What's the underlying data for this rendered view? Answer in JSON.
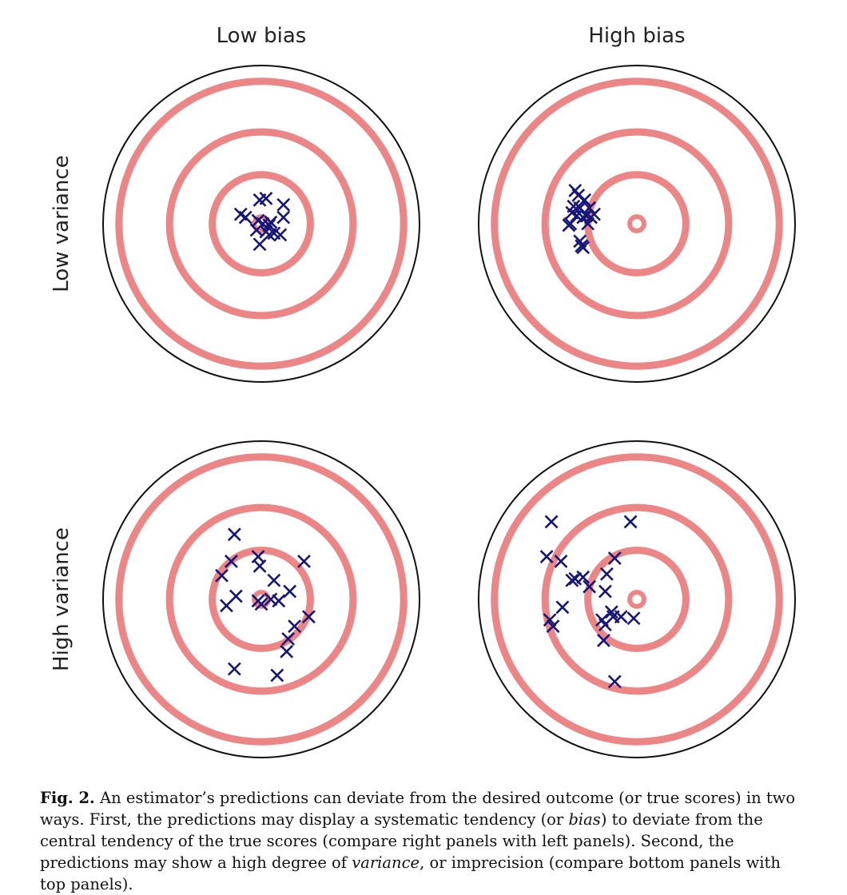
{
  "column_labels": [
    "Low bias",
    "High bias"
  ],
  "row_labels": [
    "Low variance",
    "High variance"
  ],
  "colors": {
    "ring": "#ec8585",
    "outline": "#111111",
    "marker": "#15157a"
  },
  "panels": [
    {
      "name": "low-bias-low-variance",
      "marks": [
        [
          -0.01,
          0.15
        ],
        [
          0.03,
          0.16
        ],
        [
          -0.13,
          0.06
        ],
        [
          -0.1,
          0.04
        ],
        [
          0.14,
          0.12
        ],
        [
          0.14,
          0.04
        ],
        [
          -0.02,
          0.02
        ],
        [
          0.01,
          0.0
        ],
        [
          0.05,
          -0.01
        ],
        [
          -0.03,
          -0.04
        ],
        [
          0.03,
          -0.05
        ],
        [
          0.08,
          -0.06
        ],
        [
          0.12,
          -0.07
        ],
        [
          0.05,
          -0.07
        ],
        [
          -0.01,
          -0.13
        ],
        [
          0.06,
          0.01
        ]
      ]
    },
    {
      "name": "high-bias-low-variance",
      "marks": [
        [
          -0.39,
          0.21
        ],
        [
          -0.37,
          0.18
        ],
        [
          -0.4,
          0.11
        ],
        [
          -0.33,
          0.15
        ],
        [
          -0.36,
          0.1
        ],
        [
          -0.41,
          0.07
        ],
        [
          -0.3,
          0.1
        ],
        [
          -0.32,
          0.05
        ],
        [
          -0.27,
          0.06
        ],
        [
          -0.38,
          0.05
        ],
        [
          -0.34,
          0.04
        ],
        [
          -0.29,
          0.04
        ],
        [
          -0.42,
          0.0
        ],
        [
          -0.43,
          -0.01
        ],
        [
          -0.31,
          0.0
        ],
        [
          -0.36,
          -0.11
        ],
        [
          -0.35,
          -0.14
        ],
        [
          -0.34,
          -0.15
        ]
      ]
    },
    {
      "name": "low-bias-high-variance",
      "marks": [
        [
          -0.17,
          0.41
        ],
        [
          -0.19,
          0.24
        ],
        [
          -0.02,
          0.27
        ],
        [
          0.27,
          0.24
        ],
        [
          -0.25,
          0.15
        ],
        [
          -0.01,
          0.21
        ],
        [
          0.08,
          0.12
        ],
        [
          0.18,
          0.05
        ],
        [
          -0.16,
          0.02
        ],
        [
          -0.22,
          -0.04
        ],
        [
          -0.02,
          -0.01
        ],
        [
          0.0,
          -0.03
        ],
        [
          0.06,
          0.0
        ],
        [
          0.11,
          -0.01
        ],
        [
          0.3,
          -0.11
        ],
        [
          0.21,
          -0.17
        ],
        [
          0.17,
          -0.25
        ],
        [
          0.16,
          -0.33
        ],
        [
          -0.17,
          -0.44
        ],
        [
          0.1,
          -0.48
        ]
      ]
    },
    {
      "name": "high-bias-high-variance",
      "marks": [
        [
          -0.54,
          0.49
        ],
        [
          -0.04,
          0.49
        ],
        [
          -0.57,
          0.27
        ],
        [
          -0.48,
          0.24
        ],
        [
          -0.14,
          0.26
        ],
        [
          -0.34,
          0.14
        ],
        [
          -0.39,
          0.13
        ],
        [
          -0.41,
          0.12
        ],
        [
          -0.19,
          0.16
        ],
        [
          -0.3,
          0.08
        ],
        [
          -0.2,
          0.05
        ],
        [
          -0.47,
          -0.05
        ],
        [
          -0.15,
          -0.11
        ],
        [
          -0.16,
          -0.08
        ],
        [
          -0.1,
          -0.11
        ],
        [
          -0.55,
          -0.13
        ],
        [
          -0.53,
          -0.17
        ],
        [
          -0.22,
          -0.13
        ],
        [
          -0.02,
          -0.12
        ],
        [
          -0.2,
          -0.16
        ],
        [
          -0.21,
          -0.26
        ],
        [
          -0.14,
          -0.52
        ]
      ]
    }
  ],
  "caption": {
    "label": "Fig. 2.",
    "parts": [
      " An estimator’s predictions can deviate from the desired outcome (or true scores) in two ways. First, the predictions may display a systematic tendency (or ",
      "bias",
      ") to deviate from the central tendency of the true scores (compare right panels with left panels). Second, the predictions may show a high degree of ",
      "variance",
      ", or imprecision (compare bottom panels with top panels)."
    ]
  }
}
